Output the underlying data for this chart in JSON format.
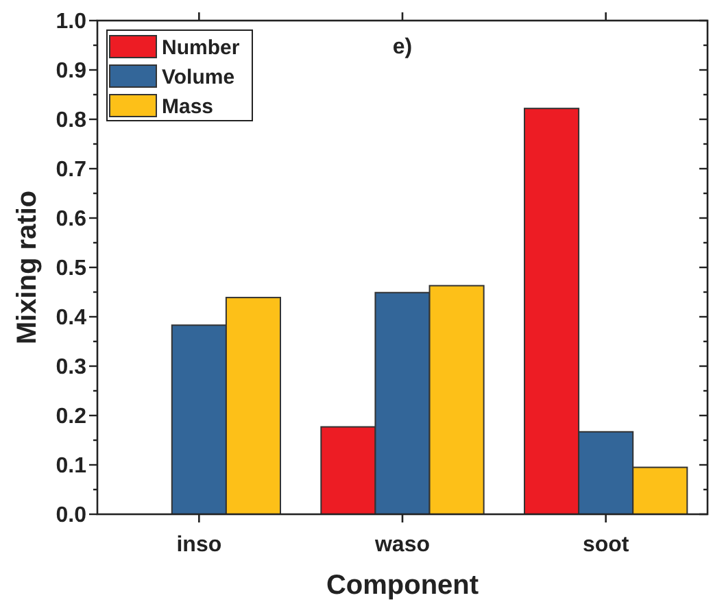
{
  "chart_data": {
    "type": "bar",
    "xlabel": "Component",
    "ylabel": "Mixing ratio",
    "annotations": [
      "e)"
    ],
    "categories": [
      "inso",
      "waso",
      "soot"
    ],
    "series": [
      {
        "name": "Number",
        "color": "#ed1c24",
        "values": [
          0,
          0.177,
          0.822
        ]
      },
      {
        "name": "Volume",
        "color": "#336699",
        "values": [
          0.383,
          0.449,
          0.167
        ]
      },
      {
        "name": "Mass",
        "color": "#fdc018",
        "values": [
          0.439,
          0.463,
          0.095
        ]
      }
    ],
    "ylim": [
      0,
      1
    ],
    "yticks": [
      {
        "value": 0,
        "label": "0.0"
      },
      {
        "value": 0.05,
        "label": null
      },
      0.1,
      {
        "value": 0.15,
        "label": null
      },
      0.2,
      {
        "value": 0.25,
        "label": null
      },
      0.3,
      {
        "value": 0.35,
        "label": null
      },
      0.4,
      {
        "value": 0.45,
        "label": null
      },
      0.5,
      {
        "value": 0.55,
        "label": null
      },
      0.6,
      {
        "value": 0.65,
        "label": null
      },
      0.7,
      {
        "value": 0.75,
        "label": null
      },
      0.8,
      {
        "value": 0.85,
        "label": null
      },
      0.9,
      {
        "value": 0.95,
        "label": null
      },
      {
        "value": 1,
        "label": "1.0"
      }
    ],
    "legend": "top left",
    "grid": false
  }
}
